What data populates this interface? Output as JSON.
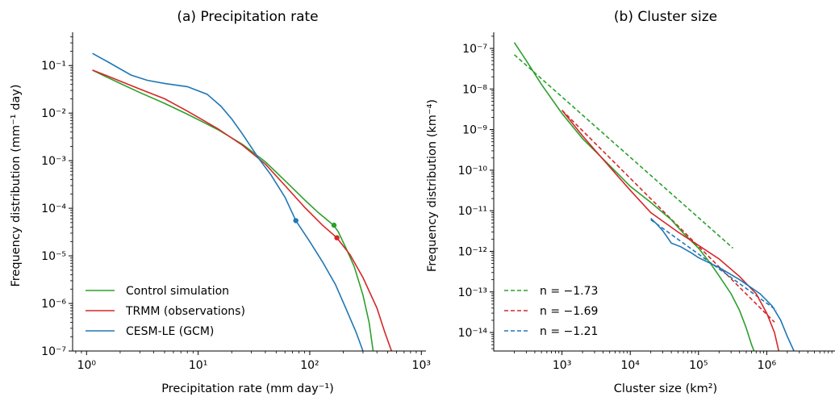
{
  "chart_data": [
    {
      "type": "line",
      "title": "(a) Precipitation rate",
      "xlabel": "Precipitation rate (mm day⁻¹)",
      "ylabel": "Frequency distribution (mm⁻¹ day)",
      "xscale": "log",
      "yscale": "log",
      "xlim": [
        0.75,
        1100
      ],
      "ylim": [
        1e-07,
        0.5
      ],
      "xticks": [
        "10⁰",
        "10¹",
        "10²",
        "10³"
      ],
      "yticks": [
        "10⁻⁷",
        "10⁻⁶",
        "10⁻⁵",
        "10⁻⁴",
        "10⁻³",
        "10⁻²",
        "10⁻¹"
      ],
      "grid": false,
      "legend_position": "lower-left",
      "series": [
        {
          "name": "Control simulation",
          "color": "#2ca02c",
          "dash": false,
          "points": [
            [
              1.13,
              0.08
            ],
            [
              1.5,
              0.058
            ],
            [
              2,
              0.042
            ],
            [
              3,
              0.027
            ],
            [
              5,
              0.016
            ],
            [
              8,
              0.0095
            ],
            [
              15,
              0.0045
            ],
            [
              25,
              0.0022
            ],
            [
              40,
              0.00095
            ],
            [
              60,
              0.00038
            ],
            [
              90,
              0.00015
            ],
            [
              120,
              8e-05
            ],
            [
              150,
              5.2e-05
            ],
            [
              165,
              4.3e-05
            ],
            [
              180,
              3.2e-05
            ],
            [
              210,
              1.5e-05
            ],
            [
              250,
              6e-06
            ],
            [
              300,
              1.5e-06
            ],
            [
              340,
              4e-07
            ],
            [
              370,
              1e-07
            ]
          ],
          "markers": [
            [
              165,
              4.4e-05
            ]
          ]
        },
        {
          "name": "TRMM (observations)",
          "color": "#d62728",
          "dash": false,
          "points": [
            [
              1.13,
              0.08
            ],
            [
              1.5,
              0.062
            ],
            [
              2,
              0.047
            ],
            [
              3,
              0.032
            ],
            [
              5,
              0.02
            ],
            [
              8,
              0.011
            ],
            [
              15,
              0.0047
            ],
            [
              25,
              0.0021
            ],
            [
              40,
              0.00085
            ],
            [
              60,
              0.0003
            ],
            [
              90,
              0.000105
            ],
            [
              130,
              4.4e-05
            ],
            [
              175,
              2.4e-05
            ],
            [
              230,
              1.05e-05
            ],
            [
              300,
              3.5e-06
            ],
            [
              400,
              8e-07
            ],
            [
              470,
              2.5e-07
            ],
            [
              540,
              1e-07
            ]
          ],
          "markers": [
            [
              175,
              2.4e-05
            ]
          ]
        },
        {
          "name": "CESM-LE (GCM)",
          "color": "#1f77b4",
          "dash": false,
          "points": [
            [
              1.13,
              0.18
            ],
            [
              1.5,
              0.125
            ],
            [
              2.5,
              0.063
            ],
            [
              3.5,
              0.049
            ],
            [
              5,
              0.042
            ],
            [
              8,
              0.036
            ],
            [
              12,
              0.025
            ],
            [
              16,
              0.014
            ],
            [
              20,
              0.0075
            ],
            [
              25,
              0.0036
            ],
            [
              30,
              0.0019
            ],
            [
              35,
              0.0011
            ],
            [
              45,
              0.0005
            ],
            [
              60,
              0.00017
            ],
            [
              75,
              5.5e-05
            ],
            [
              100,
              2e-05
            ],
            [
              130,
              7.5e-06
            ],
            [
              170,
              2.5e-06
            ],
            [
              210,
              8e-07
            ],
            [
              260,
              2.5e-07
            ],
            [
              300,
              1e-07
            ]
          ],
          "markers": [
            [
              75,
              5.5e-05
            ]
          ]
        }
      ]
    },
    {
      "type": "line",
      "title": "(b) Cluster size",
      "xlabel": "Cluster size (km²)",
      "ylabel": "Frequency distribution (km⁻⁴)",
      "xscale": "log",
      "yscale": "log",
      "xlim": [
        100,
        10000000
      ],
      "ylim": [
        3.5e-15,
        2.5e-07
      ],
      "xticks": [
        "10³",
        "10⁴",
        "10⁵",
        "10⁶"
      ],
      "yticks": [
        "10⁻¹⁴",
        "10⁻¹³",
        "10⁻¹²",
        "10⁻¹¹",
        "10⁻¹⁰",
        "10⁻⁹",
        "10⁻⁸",
        "10⁻⁷"
      ],
      "grid": false,
      "legend_position": "lower-left",
      "series": [
        {
          "name": "n = −1.73",
          "color": "#2ca02c",
          "dash": true,
          "points": [
            [
              200,
              7e-08
            ],
            [
              320000,
              1.2e-12
            ]
          ]
        },
        {
          "name": "n = −1.69",
          "color": "#d62728",
          "dash": true,
          "points": [
            [
              1000,
              3e-09
            ],
            [
              1300000,
              1.8e-14
            ]
          ]
        },
        {
          "name": "n = −1.21",
          "color": "#1f77b4",
          "dash": true,
          "points": [
            [
              20000,
              6e-12
            ],
            [
              1400000,
              3.5e-14
            ]
          ]
        },
        {
          "name": "",
          "color": "#2ca02c",
          "dash": false,
          "points": [
            [
              200,
              1.4e-07
            ],
            [
              300,
              5e-08
            ],
            [
              500,
              1.3e-08
            ],
            [
              1000,
              2.5e-09
            ],
            [
              2000,
              6e-10
            ],
            [
              5000,
              1.3e-10
            ],
            [
              10000,
              4e-11
            ],
            [
              20000,
              1.6e-11
            ],
            [
              40000,
              6e-12
            ],
            [
              60000,
              2.8e-12
            ],
            [
              100000,
              1.2e-12
            ],
            [
              150000,
              5e-13
            ],
            [
              200000,
              2.5e-13
            ],
            [
              300000,
              9e-14
            ],
            [
              400000,
              3.5e-14
            ],
            [
              500000,
              1.3e-14
            ],
            [
              600000,
              5e-15
            ],
            [
              650000,
              3.5e-15
            ]
          ]
        },
        {
          "name": "",
          "color": "#d62728",
          "dash": false,
          "points": [
            [
              1000,
              3e-09
            ],
            [
              2000,
              7e-10
            ],
            [
              5000,
              1.2e-10
            ],
            [
              10000,
              3.2e-11
            ],
            [
              20000,
              9e-12
            ],
            [
              50000,
              3e-12
            ],
            [
              100000,
              1.4e-12
            ],
            [
              200000,
              6.5e-13
            ],
            [
              400000,
              2.4e-13
            ],
            [
              700000,
              9e-14
            ],
            [
              1000000,
              3e-14
            ],
            [
              1300000,
              1e-14
            ],
            [
              1500000,
              3.5e-15
            ]
          ]
        },
        {
          "name": "",
          "color": "#1f77b4",
          "dash": false,
          "points": [
            [
              20000,
              6.5e-12
            ],
            [
              25000,
              4.5e-12
            ],
            [
              30000,
              3.2e-12
            ],
            [
              40000,
              1.6e-12
            ],
            [
              55000,
              1.3e-12
            ],
            [
              80000,
              9e-13
            ],
            [
              100000,
              7e-13
            ],
            [
              200000,
              4e-13
            ],
            [
              400000,
              2e-13
            ],
            [
              800000,
              9e-14
            ],
            [
              1200000,
              4.5e-14
            ],
            [
              1600000,
              2e-14
            ],
            [
              2000000,
              8e-15
            ],
            [
              2500000,
              3.5e-15
            ]
          ]
        }
      ]
    }
  ]
}
